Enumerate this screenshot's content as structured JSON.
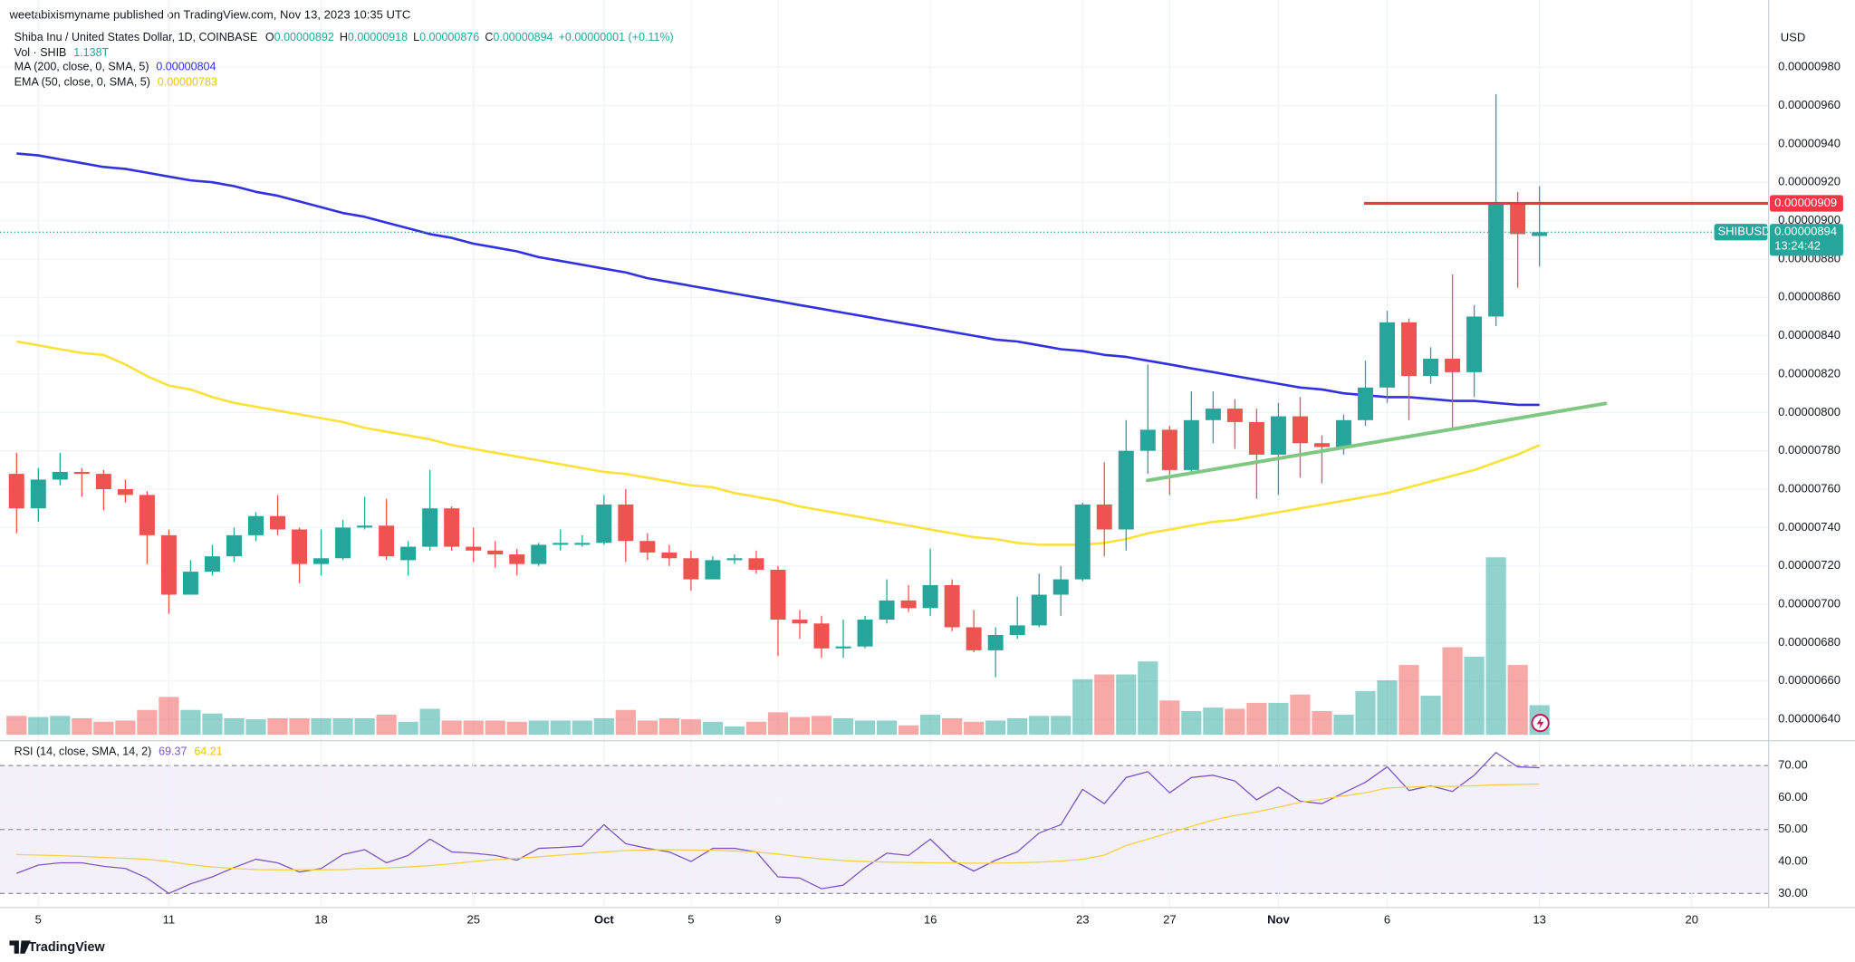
{
  "header": {
    "publisher": "weetabixismyname published on TradingView.com, Nov 13, 2023 10:35 UTC"
  },
  "footer": {
    "brand": "TradingView"
  },
  "chart_data": [
    {
      "type": "candlestick",
      "title": "Shiba Inu / United States Dollar, 1D, COINBASE",
      "categories": [
        null,
        "5",
        null,
        null,
        null,
        null,
        null,
        "11",
        null,
        null,
        null,
        null,
        null,
        null,
        "18",
        null,
        null,
        null,
        null,
        null,
        null,
        "25",
        null,
        null,
        null,
        null,
        null,
        "Oct",
        null,
        null,
        null,
        "5",
        null,
        null,
        null,
        "9",
        null,
        null,
        null,
        null,
        null,
        null,
        "16",
        null,
        null,
        null,
        null,
        null,
        null,
        "23",
        null,
        null,
        null,
        "27",
        null,
        null,
        null,
        null,
        "Nov",
        null,
        null,
        null,
        null,
        "6",
        null,
        null,
        null,
        null,
        null,
        null,
        "13",
        null,
        null,
        null,
        null,
        null,
        null,
        "20"
      ],
      "open": [
        7.68e-06,
        7.5e-06,
        7.65e-06,
        7.69e-06,
        7.68e-06,
        7.6e-06,
        7.57e-06,
        7.36e-06,
        7.05e-06,
        7.17e-06,
        7.25e-06,
        7.36e-06,
        7.46e-06,
        7.39e-06,
        7.21e-06,
        7.24e-06,
        7.4e-06,
        7.41e-06,
        7.23e-06,
        7.3e-06,
        7.5e-06,
        7.3e-06,
        7.28e-06,
        7.26e-06,
        7.21e-06,
        7.31e-06,
        7.31e-06,
        7.32e-06,
        7.52e-06,
        7.33e-06,
        7.27e-06,
        7.24e-06,
        7.13e-06,
        7.23e-06,
        7.24e-06,
        7.18e-06,
        6.92e-06,
        6.9e-06,
        6.77e-06,
        6.78e-06,
        6.92e-06,
        7.02e-06,
        6.98e-06,
        7.1e-06,
        6.88e-06,
        6.76e-06,
        6.84e-06,
        6.89e-06,
        7.05e-06,
        7.13e-06,
        7.52e-06,
        7.39e-06,
        7.8e-06,
        7.91e-06,
        7.7e-06,
        7.96e-06,
        8.02e-06,
        7.95e-06,
        7.78e-06,
        7.98e-06,
        7.84e-06,
        7.82e-06,
        7.96e-06,
        8.13e-06,
        8.47e-06,
        8.19e-06,
        8.28e-06,
        8.21e-06,
        8.5e-06,
        9.09e-06,
        8.92e-06,
        null,
        null,
        null,
        null,
        null,
        null,
        null
      ],
      "high": [
        7.79e-06,
        7.71e-06,
        7.79e-06,
        7.71e-06,
        7.7e-06,
        7.65e-06,
        7.59e-06,
        7.39e-06,
        7.23e-06,
        7.31e-06,
        7.4e-06,
        7.48e-06,
        7.57e-06,
        7.4e-06,
        7.39e-06,
        7.44e-06,
        7.56e-06,
        7.55e-06,
        7.33e-06,
        7.7e-06,
        7.51e-06,
        7.4e-06,
        7.33e-06,
        7.29e-06,
        7.32e-06,
        7.39e-06,
        7.36e-06,
        7.57e-06,
        7.6e-06,
        7.37e-06,
        7.31e-06,
        7.28e-06,
        7.25e-06,
        7.26e-06,
        7.28e-06,
        7.2e-06,
        6.97e-06,
        6.94e-06,
        6.92e-06,
        6.94e-06,
        7.13e-06,
        7.1e-06,
        7.29e-06,
        7.13e-06,
        6.97e-06,
        6.88e-06,
        7.04e-06,
        7.16e-06,
        7.2e-06,
        7.53e-06,
        7.74e-06,
        7.96e-06,
        8.25e-06,
        7.93e-06,
        8.11e-06,
        8.11e-06,
        8.07e-06,
        8.02e-06,
        8.05e-06,
        8.08e-06,
        7.88e-06,
        7.99e-06,
        8.27e-06,
        8.53e-06,
        8.49e-06,
        8.34e-06,
        8.72e-06,
        8.56e-06,
        9.66e-06,
        9.15e-06,
        9.18e-06,
        null,
        null,
        null,
        null,
        null,
        null,
        null
      ],
      "low": [
        7.37e-06,
        7.43e-06,
        7.62e-06,
        7.56e-06,
        7.49e-06,
        7.53e-06,
        7.21e-06,
        6.95e-06,
        7.05e-06,
        7.15e-06,
        7.22e-06,
        7.33e-06,
        7.36e-06,
        7.11e-06,
        7.15e-06,
        7.23e-06,
        7.39e-06,
        7.23e-06,
        7.15e-06,
        7.28e-06,
        7.28e-06,
        7.22e-06,
        7.19e-06,
        7.15e-06,
        7.2e-06,
        7.28e-06,
        7.3e-06,
        7.31e-06,
        7.22e-06,
        7.23e-06,
        7.2e-06,
        7.07e-06,
        7.13e-06,
        7.21e-06,
        7.16e-06,
        6.73e-06,
        6.82e-06,
        6.72e-06,
        6.72e-06,
        6.77e-06,
        6.9e-06,
        6.96e-06,
        6.94e-06,
        6.86e-06,
        6.75e-06,
        6.62e-06,
        6.82e-06,
        6.88e-06,
        6.94e-06,
        7.12e-06,
        7.25e-06,
        7.28e-06,
        7.68e-06,
        7.57e-06,
        7.68e-06,
        7.84e-06,
        7.81e-06,
        7.55e-06,
        7.57e-06,
        7.66e-06,
        7.63e-06,
        7.78e-06,
        7.93e-06,
        8.05e-06,
        7.96e-06,
        8.15e-06,
        7.92e-06,
        8.08e-06,
        8.45e-06,
        8.65e-06,
        8.76e-06,
        null,
        null,
        null,
        null,
        null,
        null,
        null
      ],
      "close": [
        7.5e-06,
        7.65e-06,
        7.69e-06,
        7.68e-06,
        7.6e-06,
        7.57e-06,
        7.36e-06,
        7.05e-06,
        7.17e-06,
        7.25e-06,
        7.36e-06,
        7.46e-06,
        7.39e-06,
        7.21e-06,
        7.24e-06,
        7.4e-06,
        7.41e-06,
        7.25e-06,
        7.3e-06,
        7.5e-06,
        7.3e-06,
        7.28e-06,
        7.26e-06,
        7.21e-06,
        7.31e-06,
        7.32e-06,
        7.32e-06,
        7.52e-06,
        7.33e-06,
        7.27e-06,
        7.24e-06,
        7.13e-06,
        7.23e-06,
        7.24e-06,
        7.18e-06,
        6.92e-06,
        6.9e-06,
        6.77e-06,
        6.78e-06,
        6.92e-06,
        7.02e-06,
        6.98e-06,
        7.1e-06,
        6.88e-06,
        6.76e-06,
        6.84e-06,
        6.89e-06,
        7.05e-06,
        7.13e-06,
        7.52e-06,
        7.39e-06,
        7.8e-06,
        7.91e-06,
        7.7e-06,
        7.96e-06,
        8.02e-06,
        7.95e-06,
        7.78e-06,
        7.98e-06,
        7.84e-06,
        7.82e-06,
        7.96e-06,
        8.13e-06,
        8.47e-06,
        8.19e-06,
        8.28e-06,
        8.21e-06,
        8.5e-06,
        9.09e-06,
        8.93e-06,
        8.94e-06,
        null,
        null,
        null,
        null,
        null,
        null,
        null
      ],
      "ohlc_labels": [
        "O",
        "H",
        "L",
        "C"
      ],
      "change_label": "+0.00000001 (+0.11%)",
      "up_color": "#26a69a",
      "down_color": "#ef5350",
      "ylim": [
        6.295e-06,
        1.015e-05
      ],
      "yticks": [
        {
          "value": 6.4e-06,
          "label": "0.00000640"
        },
        {
          "value": 6.6e-06,
          "label": "0.00000660"
        },
        {
          "value": 6.8e-06,
          "label": "0.00000680"
        },
        {
          "value": 7e-06,
          "label": "0.00000700"
        },
        {
          "value": 7.2e-06,
          "label": "0.00000720"
        },
        {
          "value": 7.4e-06,
          "label": "0.00000740"
        },
        {
          "value": 7.6e-06,
          "label": "0.00000760"
        },
        {
          "value": 7.8e-06,
          "label": "0.00000780"
        },
        {
          "value": 8e-06,
          "label": "0.00000800"
        },
        {
          "value": 8.2e-06,
          "label": "0.00000820"
        },
        {
          "value": 8.4e-06,
          "label": "0.00000840"
        },
        {
          "value": 8.6e-06,
          "label": "0.00000860"
        },
        {
          "value": 8.8e-06,
          "label": "0.00000880"
        },
        {
          "value": 9e-06,
          "label": "0.00000900"
        },
        {
          "value": 9.2e-06,
          "label": "0.00000920"
        },
        {
          "value": 9.4e-06,
          "label": "0.00000940"
        },
        {
          "value": 9.6e-06,
          "label": "0.00000960"
        },
        {
          "value": 9.8e-06,
          "label": "0.00000980"
        }
      ],
      "y_unit": "USD",
      "symbol": "SHIBUSD",
      "countdown": "13:24:42",
      "grid": true,
      "volume": {
        "name": "Vol · SHIB",
        "values": [
          728000000000.0,
          683000000000.0,
          728000000000.0,
          637000000000.0,
          501000000000.0,
          546000000000.0,
          956000000000.0,
          1457000000000.0,
          956000000000.0,
          819000000000.0,
          637000000000.0,
          592000000000.0,
          637000000000.0,
          637000000000.0,
          637000000000.0,
          637000000000.0,
          637000000000.0,
          774000000000.0,
          501000000000.0,
          1001000000000.0,
          546000000000.0,
          546000000000.0,
          546000000000.0,
          501000000000.0,
          546000000000.0,
          546000000000.0,
          546000000000.0,
          637000000000.0,
          956000000000.0,
          546000000000.0,
          637000000000.0,
          592000000000.0,
          501000000000.0,
          319000000000.0,
          501000000000.0,
          865000000000.0,
          683000000000.0,
          728000000000.0,
          637000000000.0,
          546000000000.0,
          546000000000.0,
          364000000000.0,
          774000000000.0,
          637000000000.0,
          501000000000.0,
          546000000000.0,
          637000000000.0,
          728000000000.0,
          728000000000.0,
          2139000000000.0,
          2322000000000.0,
          2322000000000.0,
          2822000000000.0,
          1320000000000.0,
          910000000000.0,
          1047000000000.0,
          1001000000000.0,
          1229000000000.0,
          1229000000000.0,
          1548000000000.0,
          910000000000.0,
          774000000000.0,
          1684000000000.0,
          2094000000000.0,
          2686000000000.0,
          1502000000000.0,
          3369000000000.0,
          3004000000000.0,
          6828000000000.0,
          2686000000000.0,
          1138000000000.0,
          null,
          null,
          null,
          null,
          null,
          null,
          null
        ],
        "value_labels": [
          null,
          null,
          null,
          null,
          null,
          null,
          null,
          null,
          null,
          null,
          null,
          null,
          null,
          null,
          null,
          null,
          null,
          null,
          null,
          null,
          null,
          null,
          null,
          null,
          null,
          null,
          null,
          null,
          null,
          null,
          null,
          null,
          null,
          null,
          null,
          null,
          null,
          null,
          null,
          null,
          null,
          null,
          null,
          null,
          null,
          null,
          null,
          null,
          null,
          null,
          null,
          null,
          null,
          null,
          null,
          null,
          null,
          null,
          null,
          null,
          null,
          null,
          null,
          null,
          null,
          null,
          null,
          null,
          null,
          null,
          "1.138T",
          null,
          null,
          null,
          null,
          null,
          null,
          null
        ]
      },
      "series": [
        {
          "name": "MA (200, close, 0, SMA, 5)",
          "color": "#3131e0",
          "values": [
            9.35e-06,
            9.34e-06,
            9.32e-06,
            9.3e-06,
            9.28e-06,
            9.27e-06,
            9.25e-06,
            9.23e-06,
            9.21e-06,
            9.2e-06,
            9.18e-06,
            9.15e-06,
            9.13e-06,
            9.1e-06,
            9.07e-06,
            9.04e-06,
            9.02e-06,
            8.99e-06,
            8.96e-06,
            8.93e-06,
            8.91e-06,
            8.88e-06,
            8.86e-06,
            8.84e-06,
            8.81e-06,
            8.79e-06,
            8.77e-06,
            8.75e-06,
            8.73e-06,
            8.7e-06,
            8.68e-06,
            8.66e-06,
            8.64e-06,
            8.62e-06,
            8.6e-06,
            8.58e-06,
            8.56e-06,
            8.54e-06,
            8.52e-06,
            8.5e-06,
            8.48e-06,
            8.46e-06,
            8.44e-06,
            8.42e-06,
            8.4e-06,
            8.38e-06,
            8.37e-06,
            8.35e-06,
            8.33e-06,
            8.32e-06,
            8.3e-06,
            8.29e-06,
            8.27e-06,
            8.25e-06,
            8.23e-06,
            8.21e-06,
            8.19e-06,
            8.17e-06,
            8.15e-06,
            8.13e-06,
            8.12e-06,
            8.1e-06,
            8.09e-06,
            8.08e-06,
            8.08e-06,
            8.07e-06,
            8.06e-06,
            8.06e-06,
            8.05e-06,
            8.04e-06,
            8.04e-06,
            null,
            null,
            null,
            null,
            null,
            null,
            null
          ]
        },
        {
          "name": "EMA (50, close, 0, SMA, 5)",
          "color": "#f9e23a",
          "values": [
            8.37e-06,
            8.35e-06,
            8.33e-06,
            8.31e-06,
            8.3e-06,
            8.25e-06,
            8.19e-06,
            8.14e-06,
            8.12e-06,
            8.08e-06,
            8.05e-06,
            8.03e-06,
            8.01e-06,
            7.99e-06,
            7.97e-06,
            7.95e-06,
            7.92e-06,
            7.9e-06,
            7.88e-06,
            7.86e-06,
            7.83e-06,
            7.81e-06,
            7.79e-06,
            7.77e-06,
            7.75e-06,
            7.73e-06,
            7.71e-06,
            7.69e-06,
            7.68e-06,
            7.66e-06,
            7.64e-06,
            7.62e-06,
            7.61e-06,
            7.58e-06,
            7.56e-06,
            7.54e-06,
            7.51e-06,
            7.49e-06,
            7.47e-06,
            7.45e-06,
            7.43e-06,
            7.41e-06,
            7.39e-06,
            7.37e-06,
            7.35e-06,
            7.34e-06,
            7.32e-06,
            7.31e-06,
            7.31e-06,
            7.31e-06,
            7.32e-06,
            7.34e-06,
            7.37e-06,
            7.39e-06,
            7.41e-06,
            7.43e-06,
            7.44e-06,
            7.46e-06,
            7.48e-06,
            7.5e-06,
            7.52e-06,
            7.54e-06,
            7.56e-06,
            7.58e-06,
            7.61e-06,
            7.64e-06,
            7.67e-06,
            7.7e-06,
            7.74e-06,
            7.78e-06,
            7.83e-06,
            null,
            null,
            null,
            null,
            null,
            null,
            null
          ]
        }
      ],
      "horizontal_line": {
        "value": 9.09e-06,
        "color": "#f23645"
      }
    },
    {
      "type": "line",
      "title": "RSI (14, close, SMA, 14, 2)",
      "ylim": [
        25.6,
        77.8
      ],
      "yticks": [
        {
          "value": 70,
          "label": "70.00"
        },
        {
          "value": 60,
          "label": "60.00"
        },
        {
          "value": 50,
          "label": "50.00"
        },
        {
          "value": 40,
          "label": "40.00"
        },
        {
          "value": 30,
          "label": "30.00"
        }
      ],
      "series": [
        {
          "color": "#7e57c2",
          "values": [
            36.3,
            38.9,
            39.6,
            39.6,
            38.5,
            37.8,
            34.8,
            30,
            33,
            35.2,
            38.1,
            40.7,
            39.6,
            36.7,
            37.8,
            42.2,
            43.7,
            39.6,
            41.9,
            47,
            43,
            42.6,
            41.9,
            40.4,
            44.1,
            44.4,
            44.8,
            51.5,
            45.6,
            44.1,
            43,
            40,
            44.1,
            44.1,
            43,
            35.2,
            34.8,
            31.5,
            32.6,
            38.1,
            42.6,
            41.9,
            47,
            40.4,
            37,
            40.4,
            43,
            48.9,
            51.5,
            62.6,
            58.1,
            66.3,
            68.1,
            61.5,
            66.3,
            67,
            65.2,
            59.3,
            63.3,
            58.9,
            58.1,
            61.5,
            64.8,
            69.6,
            62.2,
            63.7,
            61.9,
            67,
            74.1,
            69.6,
            69.37,
            null,
            null,
            null,
            null,
            null,
            null,
            null
          ]
        },
        {
          "color": "#f5d24b",
          "values": [
            42.2,
            42,
            41.8,
            41.6,
            41.3,
            41,
            40.7,
            40,
            39,
            38.3,
            37.8,
            37.5,
            37.4,
            37.4,
            37.4,
            37.5,
            37.8,
            38,
            38.3,
            38.7,
            39.3,
            40,
            40.6,
            41,
            41.5,
            42,
            42.5,
            43,
            43.4,
            43.6,
            43.7,
            43.6,
            43.5,
            43.3,
            43,
            42.3,
            41.5,
            40.8,
            40.3,
            40,
            39.8,
            39.7,
            39.6,
            39.6,
            39.5,
            39.5,
            39.6,
            39.8,
            40.1,
            40.7,
            42,
            45,
            47,
            49,
            51,
            53,
            54.4,
            55.5,
            57,
            58.5,
            59.5,
            60.5,
            61.5,
            63,
            63.3,
            63.5,
            63.5,
            63.7,
            64,
            64.1,
            64.21,
            null,
            null,
            null,
            null,
            null,
            null,
            null
          ]
        }
      ]
    }
  ]
}
